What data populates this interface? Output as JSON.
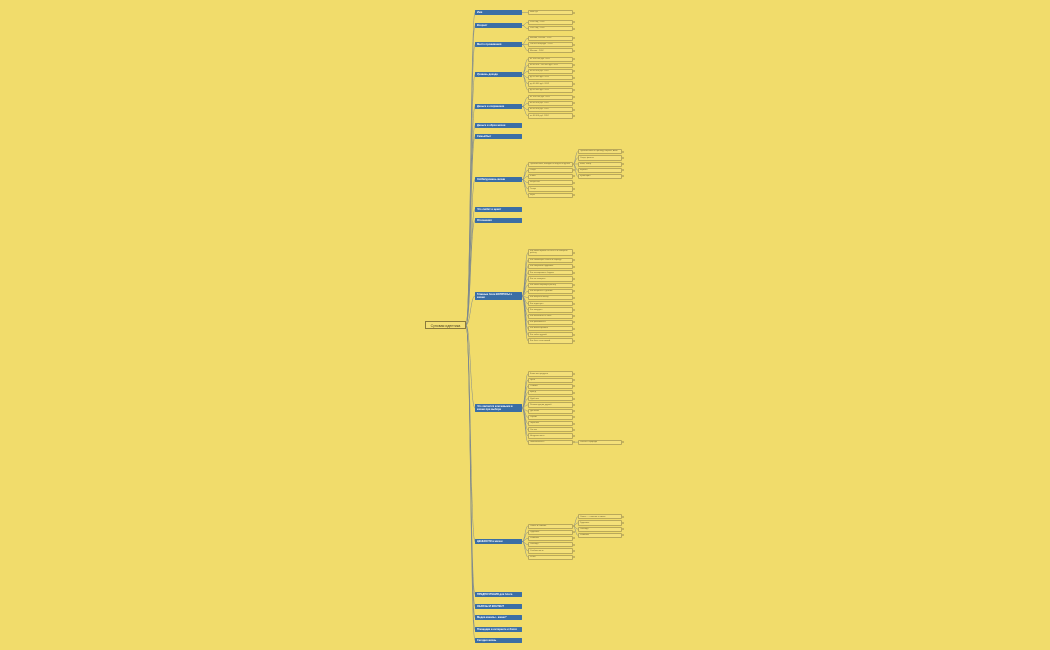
{
  "diagram": {
    "root": {
      "label": "Суповая идентика"
    },
    "branches": [
      {
        "label": "Имя",
        "children": [
          {
            "label": "Имя суп"
          }
        ]
      },
      {
        "label": "Возраст",
        "children": [
          {
            "label": "2050 год - 2052"
          },
          {
            "label": "2042 год - 2052"
          }
        ]
      },
      {
        "label": "Место проживания",
        "children": [
          {
            "label": "Москва, Россия - 2052"
          },
          {
            "label": "Санкт-Петербург - 2052"
          },
          {
            "label": "Москва - 2052"
          }
        ]
      },
      {
        "label": "Уровень дохода",
        "children": [
          {
            "label": "от 100 000 руб. 2052"
          },
          {
            "label": "от 80 000 - 100 000 руб. 2052"
          },
          {
            "label": "от 60 000 руб. 2052"
          },
          {
            "label": "до 50 000 руб. 2052"
          },
          {
            "label": "до 40 000 руб. 2052"
          },
          {
            "label": "до 30 000 руб. 2052"
          }
        ]
      },
      {
        "label": "Деньги и сохранение",
        "children": [
          {
            "label": "от 100 000 руб. 2052"
          },
          {
            "label": "от 80 000 руб. 2052"
          },
          {
            "label": "от 60 000 руб. 2052"
          },
          {
            "label": "от 40 000 руб. 2052"
          }
        ]
      },
      {
        "label": "Деньги и образ жизни",
        "children": []
      },
      {
        "label": "Семья/быт",
        "children": []
      },
      {
        "label": "Хобби/уровень жизни",
        "children": [
          {
            "label": "Путешествия, поездки на отдых за рубеж",
            "children": [
              {
                "label": "Путешествия за границу, Европа, Азия"
              },
              {
                "label": "Спорт, фитнес"
              },
              {
                "label": "Кино, театр"
              },
              {
                "label": "Музыка"
              },
              {
                "label": "Кулинария"
              }
            ]
          },
          {
            "label": "Спорт"
          },
          {
            "label": "Книги"
          },
          {
            "label": "Искусство"
          },
          {
            "label": "Танцы"
          },
          {
            "label": "Игры"
          }
        ]
      },
      {
        "label": "Что любит и ценит",
        "children": []
      },
      {
        "label": "Отношения",
        "children": []
      },
      {
        "label": "Главные боли ВОПРОСЫ к жизни",
        "children": [
          {
            "label": "Как найти время на себя и не потерять работу"
          },
          {
            "label": "Как совмещать семью и карьеру"
          },
          {
            "label": "Как сохранить здоровье"
          },
          {
            "label": "Как планировать бюджет"
          },
          {
            "label": "Как не выгореть"
          },
          {
            "label": "Как найти хорошую работу"
          },
          {
            "label": "Как общаться с детьми"
          },
          {
            "label": "Как выбрать школу"
          },
          {
            "label": "Как отдохнуть"
          },
          {
            "label": "Как похудеть"
          },
          {
            "label": "Как заботиться о себе"
          },
          {
            "label": "Как развиваться"
          },
          {
            "label": "Как инвестировать"
          },
          {
            "label": "Как найти друзей"
          },
          {
            "label": "Как быть счастливой"
          }
        ]
      },
      {
        "label": "Что является ключевыми в жизни при выборе",
        "children": [
          {
            "label": "Качество продукта"
          },
          {
            "label": "Цена"
          },
          {
            "label": "Отзывы"
          },
          {
            "label": "Бренд"
          },
          {
            "label": "Удобство"
          },
          {
            "label": "Рекомендации друзей"
          },
          {
            "label": "Доставка"
          },
          {
            "label": "Сервис"
          },
          {
            "label": "Гарантия"
          },
          {
            "label": "Состав"
          },
          {
            "label": "Натуральность"
          },
          {
            "label": "Экологичность",
            "children": [
              {
                "label": "Забота о природе"
              }
            ]
          }
        ]
      },
      {
        "label": "ЦЕННОСТИ в жизни",
        "children": [
          {
            "label": "Семья и близкие",
            "children": [
              {
                "label": "Семья — главное в жизни"
              },
              {
                "label": "Здоровье"
              },
              {
                "label": "Свобода"
              },
              {
                "label": "Развитие"
              }
            ]
          },
          {
            "label": "Здоровье"
          },
          {
            "label": "Развитие"
          },
          {
            "label": "Свобода"
          },
          {
            "label": "Стабильность"
          },
          {
            "label": "Успех"
          }
        ]
      },
      {
        "label": "ПРЕДПОЧТЕНИЯ для блога",
        "children": []
      },
      {
        "label": "ОБРАЗЫ И КОНТЕНТ",
        "children": []
      },
      {
        "label": "Медиа каналы - какие?",
        "children": []
      },
      {
        "label": "Площадки в интернете и блоги",
        "children": []
      },
      {
        "label": "Сегодня жизнь",
        "children": []
      }
    ]
  }
}
